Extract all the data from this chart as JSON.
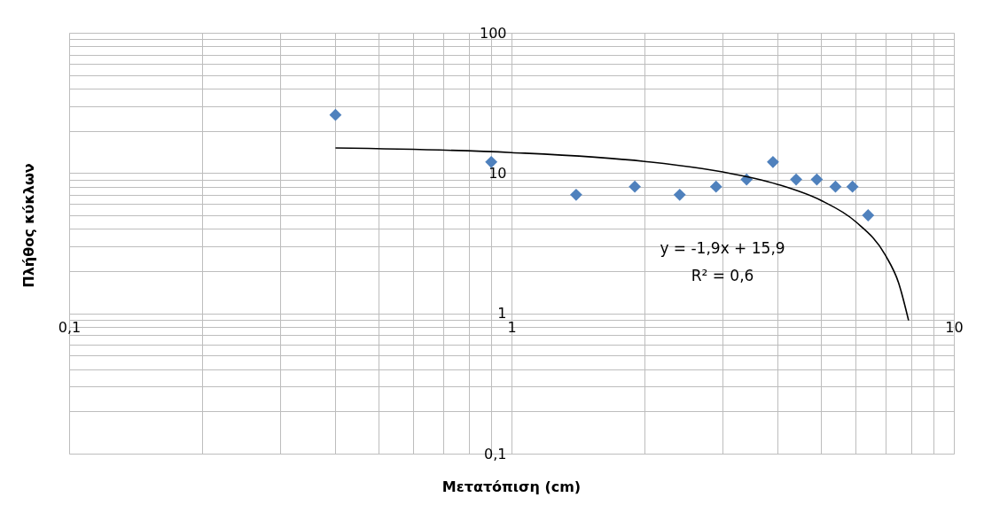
{
  "chart_data": {
    "type": "scatter",
    "xlabel": "Μετατόπιση (cm)",
    "ylabel": "Πλήθος κύκλων",
    "log": "xy",
    "grid": true,
    "marker": "diamond",
    "xlim": [
      0.1,
      10
    ],
    "ylim": [
      0.1,
      100
    ],
    "xticks": [
      {
        "value": 0.1,
        "label": "0,1"
      },
      {
        "value": 0.2,
        "label": null
      },
      {
        "value": 0.3,
        "label": null
      },
      {
        "value": 0.4,
        "label": null
      },
      {
        "value": 0.5,
        "label": null
      },
      {
        "value": 0.6,
        "label": null
      },
      {
        "value": 0.7,
        "label": null
      },
      {
        "value": 0.8,
        "label": null
      },
      {
        "value": 0.9,
        "label": null
      },
      1,
      {
        "value": 2,
        "label": null
      },
      {
        "value": 3,
        "label": null
      },
      {
        "value": 4,
        "label": null
      },
      {
        "value": 5,
        "label": null
      },
      {
        "value": 6,
        "label": null
      },
      {
        "value": 7,
        "label": null
      },
      {
        "value": 8,
        "label": null
      },
      {
        "value": 9,
        "label": null
      },
      10
    ],
    "yticks": [
      {
        "value": 0.1,
        "label": "0,1"
      },
      {
        "value": 0.2,
        "label": null
      },
      {
        "value": 0.3,
        "label": null
      },
      {
        "value": 0.4,
        "label": null
      },
      {
        "value": 0.5,
        "label": null
      },
      {
        "value": 0.6,
        "label": null
      },
      {
        "value": 0.7,
        "label": null
      },
      {
        "value": 0.8,
        "label": null
      },
      {
        "value": 0.9,
        "label": null
      },
      1,
      {
        "value": 2,
        "label": null
      },
      {
        "value": 3,
        "label": null
      },
      {
        "value": 4,
        "label": null
      },
      {
        "value": 5,
        "label": null
      },
      {
        "value": 6,
        "label": null
      },
      {
        "value": 7,
        "label": null
      },
      {
        "value": 8,
        "label": null
      },
      {
        "value": 9,
        "label": null
      },
      10,
      {
        "value": 20,
        "label": null
      },
      {
        "value": 30,
        "label": null
      },
      {
        "value": 40,
        "label": null
      },
      {
        "value": 50,
        "label": null
      },
      {
        "value": 60,
        "label": null
      },
      {
        "value": 70,
        "label": null
      },
      {
        "value": 80,
        "label": null
      },
      {
        "value": 90,
        "label": null
      },
      100
    ],
    "series": [
      {
        "color": "#4f81bd",
        "x": [
          0.4,
          0.9,
          1.4,
          1.9,
          2.4,
          2.9,
          3.4,
          3.9,
          4.4,
          4.9,
          5.4,
          5.9,
          6.4
        ],
        "values": [
          26,
          12,
          7,
          8,
          7,
          8,
          9,
          12,
          9,
          9,
          8,
          8,
          5
        ]
      },
      {
        "type": "line",
        "color": "#000000",
        "marker": "none",
        "x": [
          0.4,
          1,
          2,
          3,
          4,
          5,
          6,
          7,
          7.5,
          7.9
        ],
        "values": [
          15.1,
          14,
          12.1,
          10.2,
          8.3,
          6.4,
          4.5,
          2.6,
          1.65,
          0.89
        ]
      }
    ],
    "annotations": [
      "y = -1,9x + 15,9",
      "R² = 0,6"
    ]
  }
}
